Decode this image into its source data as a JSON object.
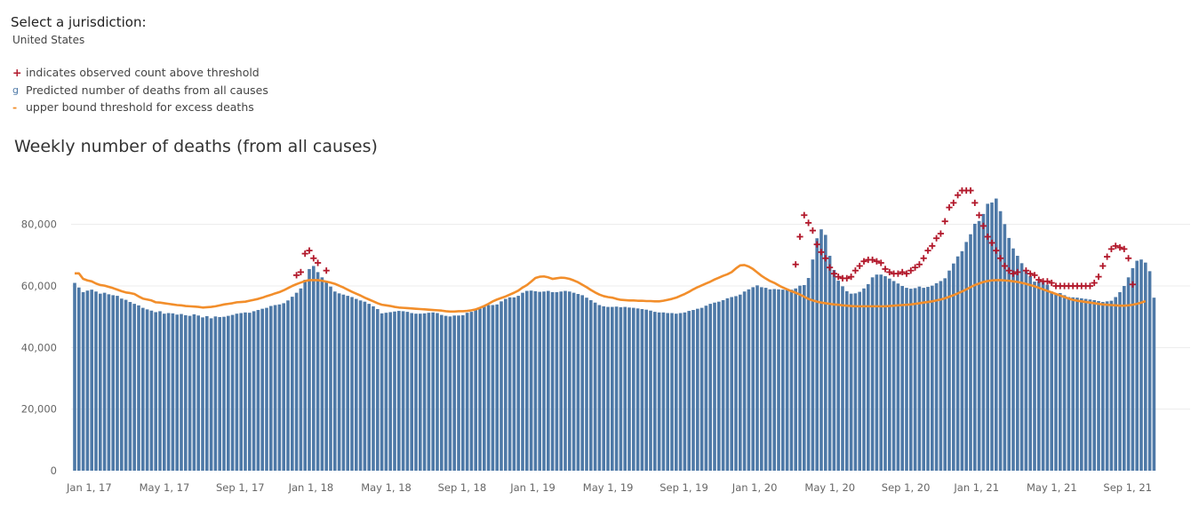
{
  "filter": {
    "label": "Select a jurisdiction:",
    "value": "United States"
  },
  "legend": {
    "items": [
      {
        "symbol": "+",
        "color": "#b2182b",
        "text": "indicates observed count above threshold"
      },
      {
        "symbol": "g",
        "color": "#4e79a7",
        "text": "Predicted number of deaths from all causes"
      },
      {
        "symbol": "-",
        "color": "#f28e2b",
        "text": "upper bound threshold for excess deaths"
      }
    ]
  },
  "chart_data": {
    "type": "bar",
    "title": "Weekly number of deaths (from all causes)",
    "xlabel": "",
    "ylabel": "",
    "ylim": [
      0,
      90000
    ],
    "grid": true,
    "y_ticks": [
      {
        "value": 0,
        "label": "0"
      },
      {
        "value": 20000,
        "label": "20,000"
      },
      {
        "value": 40000,
        "label": "40,000"
      },
      {
        "value": 60000,
        "label": "60,000"
      },
      {
        "value": 80000,
        "label": "80,000"
      }
    ],
    "x_ticks": [
      {
        "week": 1,
        "label": "Jan 1, 17"
      },
      {
        "week": 18,
        "label": "May 1, 17"
      },
      {
        "week": 36,
        "label": "Sep 1, 17"
      },
      {
        "week": 53,
        "label": "Jan 1, 18"
      },
      {
        "week": 70,
        "label": "May 1, 18"
      },
      {
        "week": 88,
        "label": "Sep 1, 18"
      },
      {
        "week": 105,
        "label": "Jan 1, 19"
      },
      {
        "week": 122,
        "label": "May 1, 19"
      },
      {
        "week": 140,
        "label": "Sep 1, 19"
      },
      {
        "week": 157,
        "label": "Jan 1, 20"
      },
      {
        "week": 174,
        "label": "May 1, 20"
      },
      {
        "week": 192,
        "label": "Sep 1, 20"
      },
      {
        "week": 209,
        "label": "Jan 1, 21"
      },
      {
        "week": 226,
        "label": "May 1, 21"
      },
      {
        "week": 244,
        "label": "Sep 1, 21"
      }
    ],
    "colors": {
      "bars": "#4e79a7",
      "threshold": "#f28e2b",
      "marker": "#b2182b"
    },
    "series": [
      {
        "name": "Predicted number of deaths from all causes",
        "type": "bar",
        "values": [
          61000,
          59500,
          58000,
          58500,
          58800,
          58200,
          57500,
          57800,
          57300,
          57000,
          56800,
          55900,
          55500,
          54800,
          54200,
          53700,
          52900,
          52400,
          52000,
          51500,
          51800,
          51000,
          51200,
          51100,
          50700,
          50900,
          50500,
          50300,
          50800,
          50400,
          49800,
          50200,
          49500,
          50100,
          49900,
          50000,
          50300,
          50600,
          51000,
          51200,
          51400,
          51300,
          51800,
          52200,
          52600,
          52900,
          53500,
          53800,
          54000,
          54400,
          55300,
          56500,
          57800,
          59200,
          62000,
          65500,
          66500,
          64500,
          62800,
          61200,
          59800,
          58200,
          57600,
          57200,
          56800,
          56400,
          55800,
          55300,
          54900,
          54200,
          53400,
          52500,
          51100,
          51300,
          51500,
          51700,
          51900,
          51800,
          51600,
          51200,
          51000,
          51000,
          51100,
          51300,
          51400,
          51200,
          50600,
          50300,
          50100,
          50400,
          50400,
          50500,
          51300,
          51600,
          52200,
          52700,
          53300,
          53800,
          53800,
          54000,
          55000,
          55800,
          56300,
          56300,
          56800,
          57800,
          58400,
          58500,
          58300,
          58100,
          58200,
          58400,
          58000,
          58000,
          58200,
          58400,
          58200,
          57800,
          57400,
          57000,
          56200,
          55400,
          54600,
          53800,
          53400,
          53200,
          53200,
          53300,
          53100,
          53200,
          53000,
          52900,
          52700,
          52500,
          52300,
          52000,
          51600,
          51400,
          51400,
          51200,
          51200,
          51000,
          51200,
          51400,
          51900,
          52200,
          52600,
          52900,
          53600,
          54200,
          54600,
          54900,
          55400,
          56000,
          56400,
          56700,
          57200,
          58200,
          58900,
          59600,
          60200,
          59600,
          59400,
          58900,
          59000,
          58900,
          58800,
          59000,
          58800,
          59200,
          60100,
          60300,
          62600,
          68600,
          75500,
          78400,
          76600,
          69800,
          65200,
          61700,
          59900,
          58300,
          57500,
          57600,
          58100,
          59200,
          60600,
          62800,
          63700,
          63700,
          63200,
          62400,
          61600,
          60800,
          60000,
          59400,
          59100,
          59300,
          59800,
          59400,
          59700,
          60100,
          60900,
          61600,
          62500,
          65000,
          67300,
          69600,
          71300,
          74300,
          76800,
          80200,
          81100,
          83400,
          86700,
          87100,
          88400,
          84300,
          80100,
          75600,
          72200,
          69800,
          67400,
          65000,
          63200,
          61400,
          61600,
          61200,
          60400,
          58200,
          57500,
          57700,
          57000,
          56400,
          56300,
          56200,
          56000,
          55800,
          55600,
          55400,
          55100,
          54800,
          55000,
          55200,
          56400,
          58000,
          60000,
          62800,
          65800,
          68200,
          68600,
          67600,
          64800,
          56200
        ]
      },
      {
        "name": "upper bound threshold for excess deaths",
        "type": "line",
        "values": [
          64100,
          64100,
          62300,
          61800,
          61500,
          60800,
          60300,
          60100,
          59700,
          59300,
          58800,
          58300,
          57900,
          57700,
          57400,
          56600,
          55900,
          55600,
          55300,
          54700,
          54600,
          54400,
          54200,
          54000,
          53800,
          53700,
          53500,
          53400,
          53300,
          53200,
          53000,
          53100,
          53200,
          53400,
          53700,
          54000,
          54200,
          54400,
          54700,
          54800,
          54900,
          55200,
          55500,
          55800,
          56200,
          56700,
          57100,
          57600,
          58000,
          58600,
          59300,
          60000,
          60600,
          61100,
          61600,
          61900,
          61900,
          61900,
          61700,
          61400,
          61100,
          60700,
          60100,
          59500,
          58800,
          58100,
          57500,
          56900,
          56200,
          55600,
          55000,
          54400,
          53900,
          53700,
          53500,
          53200,
          53000,
          52900,
          52800,
          52700,
          52600,
          52500,
          52400,
          52300,
          52200,
          52100,
          52000,
          51800,
          51700,
          51700,
          51800,
          51800,
          51900,
          52100,
          52400,
          52900,
          53500,
          54200,
          55000,
          55600,
          56100,
          56600,
          57200,
          57800,
          58500,
          59500,
          60300,
          61400,
          62600,
          63000,
          63100,
          62800,
          62300,
          62500,
          62700,
          62600,
          62300,
          61800,
          61200,
          60400,
          59600,
          58700,
          57900,
          57200,
          56700,
          56400,
          56200,
          55800,
          55500,
          55400,
          55300,
          55300,
          55200,
          55200,
          55100,
          55100,
          55000,
          55000,
          55200,
          55500,
          55800,
          56200,
          56800,
          57400,
          58100,
          58900,
          59600,
          60200,
          60800,
          61400,
          62100,
          62700,
          63300,
          63800,
          64500,
          65700,
          66700,
          66800,
          66300,
          65500,
          64400,
          63300,
          62400,
          61600,
          61000,
          60200,
          59500,
          58900,
          58300,
          57800,
          57200,
          56500,
          55800,
          55300,
          54900,
          54600,
          54400,
          54200,
          54000,
          53900,
          53700,
          53600,
          53500,
          53400,
          53400,
          53400,
          53400,
          53400,
          53400,
          53400,
          53400,
          53500,
          53600,
          53700,
          53800,
          53900,
          54000,
          54200,
          54400,
          54600,
          54800,
          55000,
          55300,
          55600,
          56000,
          56500,
          57000,
          57600,
          58200,
          58900,
          59600,
          60300,
          60800,
          61300,
          61600,
          61800,
          61900,
          61900,
          61800,
          61700,
          61500,
          61300,
          61000,
          60700,
          60300,
          59900,
          59400,
          58900,
          58400,
          57900,
          57400,
          56900,
          56400,
          55900,
          55500,
          55200,
          55000,
          54800,
          54600,
          54400,
          54200,
          54000,
          53900,
          53800,
          53700,
          53600,
          53600,
          53700,
          53900,
          54200,
          54600,
          55100
        ]
      },
      {
        "name": "indicates observed count above threshold",
        "type": "marker",
        "points": [
          {
            "week": 53,
            "y": 63500
          },
          {
            "week": 54,
            "y": 64500
          },
          {
            "week": 55,
            "y": 70500
          },
          {
            "week": 56,
            "y": 71500
          },
          {
            "week": 57,
            "y": 69000
          },
          {
            "week": 58,
            "y": 67500
          },
          {
            "week": 60,
            "y": 65000
          },
          {
            "week": 170,
            "y": 67000
          },
          {
            "week": 171,
            "y": 76000
          },
          {
            "week": 172,
            "y": 83000
          },
          {
            "week": 173,
            "y": 80500
          },
          {
            "week": 174,
            "y": 78000
          },
          {
            "week": 175,
            "y": 73500
          },
          {
            "week": 176,
            "y": 71000
          },
          {
            "week": 177,
            "y": 69000
          },
          {
            "week": 178,
            "y": 66000
          },
          {
            "week": 179,
            "y": 64000
          },
          {
            "week": 180,
            "y": 63000
          },
          {
            "week": 181,
            "y": 62500
          },
          {
            "week": 182,
            "y": 62500
          },
          {
            "week": 183,
            "y": 63000
          },
          {
            "week": 184,
            "y": 65000
          },
          {
            "week": 185,
            "y": 66500
          },
          {
            "week": 186,
            "y": 68000
          },
          {
            "week": 187,
            "y": 68500
          },
          {
            "week": 188,
            "y": 68500
          },
          {
            "week": 189,
            "y": 68000
          },
          {
            "week": 190,
            "y": 67500
          },
          {
            "week": 191,
            "y": 65500
          },
          {
            "week": 192,
            "y": 64500
          },
          {
            "week": 193,
            "y": 64000
          },
          {
            "week": 194,
            "y": 64000
          },
          {
            "week": 195,
            "y": 64500
          },
          {
            "week": 196,
            "y": 64000
          },
          {
            "week": 197,
            "y": 65000
          },
          {
            "week": 198,
            "y": 66000
          },
          {
            "week": 199,
            "y": 67000
          },
          {
            "week": 200,
            "y": 69000
          },
          {
            "week": 201,
            "y": 71500
          },
          {
            "week": 202,
            "y": 73000
          },
          {
            "week": 203,
            "y": 75500
          },
          {
            "week": 204,
            "y": 77000
          },
          {
            "week": 205,
            "y": 81000
          },
          {
            "week": 206,
            "y": 85500
          },
          {
            "week": 207,
            "y": 87000
          },
          {
            "week": 208,
            "y": 89500
          },
          {
            "week": 209,
            "y": 91000
          },
          {
            "week": 210,
            "y": 91000
          },
          {
            "week": 211,
            "y": 91000
          },
          {
            "week": 212,
            "y": 87000
          },
          {
            "week": 213,
            "y": 83000
          },
          {
            "week": 214,
            "y": 79500
          },
          {
            "week": 215,
            "y": 76000
          },
          {
            "week": 216,
            "y": 74000
          },
          {
            "week": 217,
            "y": 71500
          },
          {
            "week": 218,
            "y": 69000
          },
          {
            "week": 219,
            "y": 66500
          },
          {
            "week": 220,
            "y": 65000
          },
          {
            "week": 221,
            "y": 64000
          },
          {
            "week": 222,
            "y": 64500
          },
          {
            "week": 224,
            "y": 65000
          },
          {
            "week": 225,
            "y": 64000
          },
          {
            "week": 226,
            "y": 63500
          },
          {
            "week": 227,
            "y": 62000
          },
          {
            "week": 228,
            "y": 61500
          },
          {
            "week": 229,
            "y": 61500
          },
          {
            "week": 230,
            "y": 61000
          },
          {
            "week": 231,
            "y": 60000
          },
          {
            "week": 232,
            "y": 60000
          },
          {
            "week": 233,
            "y": 60000
          },
          {
            "week": 234,
            "y": 60000
          },
          {
            "week": 235,
            "y": 60000
          },
          {
            "week": 236,
            "y": 60000
          },
          {
            "week": 237,
            "y": 60000
          },
          {
            "week": 238,
            "y": 60000
          },
          {
            "week": 239,
            "y": 60000
          },
          {
            "week": 240,
            "y": 61000
          },
          {
            "week": 241,
            "y": 63000
          },
          {
            "week": 242,
            "y": 66500
          },
          {
            "week": 243,
            "y": 69500
          },
          {
            "week": 244,
            "y": 72000
          },
          {
            "week": 245,
            "y": 73000
          },
          {
            "week": 246,
            "y": 72500
          },
          {
            "week": 247,
            "y": 72000
          },
          {
            "week": 248,
            "y": 69000
          },
          {
            "week": 249,
            "y": 60500
          }
        ]
      }
    ]
  }
}
